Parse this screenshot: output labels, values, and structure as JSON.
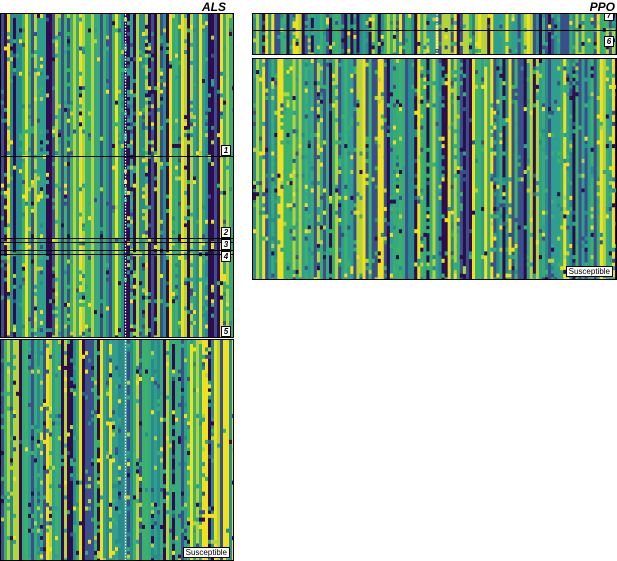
{
  "genes": [
    {
      "title": "ALS",
      "groups": [
        {
          "label": "1"
        },
        {
          "label": "2"
        },
        {
          "label": "3"
        },
        {
          "label": "4"
        },
        {
          "label": "5"
        },
        {
          "label": "Susceptible"
        }
      ]
    },
    {
      "title": "PPO",
      "groups": [
        {
          "label": "7"
        },
        {
          "label": "6"
        },
        {
          "label": "Susceptible"
        }
      ]
    }
  ],
  "colors": {
    "palette": [
      "#2e0c4f",
      "#3b4f8a",
      "#2a8c8a",
      "#38a97a",
      "#3ab26b",
      "#2f9e8e",
      "#f0e11c",
      "#b6d43a"
    ],
    "border": "#000000",
    "dotted_column": "#ffffff"
  }
}
